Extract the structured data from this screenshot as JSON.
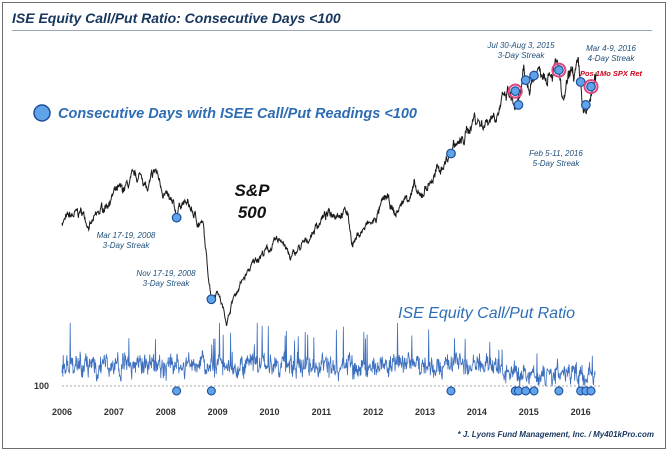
{
  "title": "ISE Equity Call/Put Ratio: Consecutive Days <100",
  "legend_label": "Consecutive Days with ISEE Call/Put Readings <100",
  "sp_label_line1": "S&P",
  "sp_label_line2": "500",
  "ratio_panel_title": "ISE Equity Call/Put Ratio",
  "reference_level_label": "100",
  "credit": "* J. Lyons Fund Management, Inc. / My401kPro.com",
  "colors": {
    "title": "#17365d",
    "price_line": "#1a1a1a",
    "ratio_line": "#3d6fbf",
    "marker_fill": "#5fa3e8",
    "marker_edge": "#1f4e9c",
    "highlight_ring": "#e0457b",
    "annotation_text": "#1f4e79",
    "positive_return_text": "#d0021b"
  },
  "annotations": [
    {
      "id": "mar2008",
      "line1": "Mar 17-19, 2008",
      "line2": "3-Day Streak"
    },
    {
      "id": "nov2008",
      "line1": "Nov 17-19, 2008",
      "line2": "3-Day Streak"
    },
    {
      "id": "jul2015",
      "line1": "Jul 30-Aug 3, 2015",
      "line2": "3-Day Streak"
    },
    {
      "id": "mar2016",
      "line1": "Mar 4-9, 2016",
      "line2": "4-Day Streak"
    },
    {
      "id": "feb2016",
      "line1": "Feb 5-11, 2016",
      "line2": "5-Day Streak"
    }
  ],
  "positive_return_label": "Pos 1Mo SPX Ret",
  "chart_data": {
    "type": "line",
    "x_tick_labels": [
      "2006",
      "2007",
      "2008",
      "2009",
      "2010",
      "2011",
      "2012",
      "2013",
      "2014",
      "2015",
      "2016"
    ],
    "xlim": [
      2006.0,
      2016.45
    ],
    "series": [
      {
        "name": "S&P 500",
        "x": [
          2006.0,
          2006.2,
          2006.38,
          2006.55,
          2006.8,
          2007.0,
          2007.15,
          2007.4,
          2007.55,
          2007.65,
          2007.8,
          2008.0,
          2008.2,
          2008.3,
          2008.45,
          2008.6,
          2008.72,
          2008.8,
          2008.88,
          2008.95,
          2009.0,
          2009.1,
          2009.18,
          2009.3,
          2009.45,
          2009.6,
          2009.8,
          2010.0,
          2010.25,
          2010.4,
          2010.55,
          2010.7,
          2010.85,
          2011.0,
          2011.3,
          2011.5,
          2011.6,
          2011.75,
          2011.9,
          2012.0,
          2012.25,
          2012.42,
          2012.6,
          2012.8,
          2012.9,
          2013.0,
          2013.3,
          2013.45,
          2013.55,
          2013.7,
          2013.95,
          2014.1,
          2014.4,
          2014.6,
          2014.78,
          2014.9,
          2015.0,
          2015.15,
          2015.4,
          2015.58,
          2015.65,
          2015.8,
          2015.95,
          2016.05,
          2016.11,
          2016.2,
          2016.3
        ],
        "values": [
          1270,
          1295,
          1320,
          1245,
          1345,
          1420,
          1430,
          1500,
          1520,
          1430,
          1545,
          1410,
          1310,
          1380,
          1350,
          1275,
          1250,
          1020,
          860,
          880,
          900,
          800,
          720,
          850,
          930,
          1000,
          1085,
          1120,
          1180,
          1060,
          1115,
          1150,
          1220,
          1285,
          1330,
          1320,
          1150,
          1210,
          1250,
          1260,
          1400,
          1300,
          1390,
          1450,
          1380,
          1450,
          1560,
          1620,
          1690,
          1690,
          1840,
          1800,
          1880,
          1960,
          1870,
          2050,
          2000,
          2090,
          2110,
          2110,
          1890,
          2060,
          2090,
          1880,
          1830,
          1960,
          2040
        ],
        "ylim": [
          650,
          2150
        ],
        "markers": [
          {
            "x": 2008.21,
            "y": 1290,
            "highlight": false
          },
          {
            "x": 2008.88,
            "y": 845,
            "highlight": false
          },
          {
            "x": 2013.5,
            "y": 1640,
            "highlight": false
          },
          {
            "x": 2014.74,
            "y": 1980,
            "highlight": true
          },
          {
            "x": 2014.8,
            "y": 1905,
            "highlight": false
          },
          {
            "x": 2014.94,
            "y": 2040,
            "highlight": false
          },
          {
            "x": 2015.1,
            "y": 2065,
            "highlight": false
          },
          {
            "x": 2015.58,
            "y": 2095,
            "highlight": true
          },
          {
            "x": 2016.0,
            "y": 2030,
            "highlight": false
          },
          {
            "x": 2016.1,
            "y": 1905,
            "highlight": false
          },
          {
            "x": 2016.2,
            "y": 2005,
            "highlight": true
          }
        ]
      },
      {
        "name": "ISE Equity Call/Put Ratio",
        "x_start": 2006.0,
        "x_end": 2016.28,
        "baseline": 100,
        "ylim": [
          85,
          250
        ],
        "markers": [
          {
            "x": 2008.21,
            "y": 92
          },
          {
            "x": 2008.88,
            "y": 92
          },
          {
            "x": 2013.5,
            "y": 92
          },
          {
            "x": 2014.74,
            "y": 92
          },
          {
            "x": 2014.8,
            "y": 92
          },
          {
            "x": 2014.94,
            "y": 92
          },
          {
            "x": 2015.1,
            "y": 92
          },
          {
            "x": 2015.58,
            "y": 92
          },
          {
            "x": 2016.0,
            "y": 92
          },
          {
            "x": 2016.1,
            "y": 92
          },
          {
            "x": 2016.2,
            "y": 92
          }
        ]
      }
    ]
  }
}
